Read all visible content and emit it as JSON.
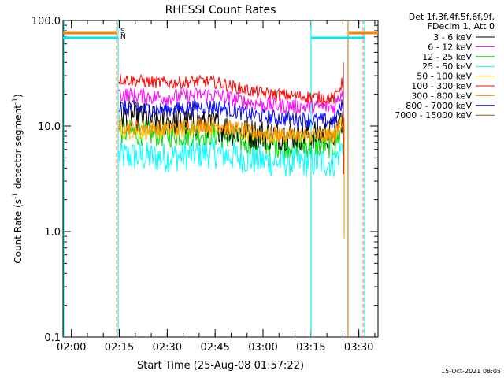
{
  "chart_data": {
    "type": "line",
    "title": "RHESSI Count Rates",
    "xlabel": "Start Time (25-Aug-08 01:57:22)",
    "ylabel_main": "Count Rate (s",
    "ylabel_sup1": "-1",
    "ylabel_mid": " detector segment",
    "ylabel_sup2": "-1",
    "ylabel_end": ")",
    "yscale": "log",
    "ylim": [
      0.1,
      100.0
    ],
    "xlim": [
      "01:57:22",
      "03:36:00"
    ],
    "x_ticks": [
      "02:00",
      "02:15",
      "02:30",
      "02:45",
      "03:00",
      "03:15",
      "03:30"
    ],
    "y_ticks": [
      "0.1",
      "1.0",
      "10.0",
      "100.0"
    ],
    "legend_header": [
      "Det 1f,3f,4f,5f,6f,9f,",
      "FDecim 1, Att 0"
    ],
    "legend_placement": "right, outside plot",
    "timestamp": "15-Oct-2021 08:05",
    "flags": [
      {
        "label": "S",
        "color": "#ff7f00"
      },
      {
        "label": "N",
        "color": "#00e5ee"
      }
    ],
    "series": [
      {
        "name": "3 - 6 keV",
        "color": "#000000",
        "start": 13.0,
        "mid": 8.0,
        "end": 8.5,
        "noise": 0.3
      },
      {
        "name": "6 - 12 keV",
        "color": "#ff00ff",
        "start": 20.0,
        "mid": 16.0,
        "end": 15.0,
        "noise": 0.15
      },
      {
        "name": "12 - 25 keV",
        "color": "#00dd00",
        "start": 9.0,
        "mid": 6.8,
        "end": 6.5,
        "noise": 0.25
      },
      {
        "name": "25 - 50 keV",
        "color": "#00ffff",
        "start": 5.2,
        "mid": 4.6,
        "end": 4.5,
        "noise": 0.3
      },
      {
        "name": "50 - 100 keV",
        "color": "#ffcc00",
        "start": 9.0,
        "mid": 8.0,
        "end": 8.0,
        "noise": 0.15
      },
      {
        "name": "100 - 300 keV",
        "color": "#ff0000",
        "start": 28.0,
        "mid": 21.0,
        "end": 18.0,
        "noise": 0.12
      },
      {
        "name": "300 - 800 keV",
        "color": "#ff8c00",
        "start": 10.0,
        "mid": 8.5,
        "end": 8.0,
        "noise": 0.15
      },
      {
        "name": "800 - 7000 keV",
        "color": "#0000ff",
        "start": 15.0,
        "mid": 12.5,
        "end": 11.0,
        "noise": 0.15
      },
      {
        "name": "7000 - 15000 keV",
        "color": "#8b5a00",
        "start": 0,
        "mid": 0,
        "end": 0,
        "noise": 0
      }
    ]
  }
}
